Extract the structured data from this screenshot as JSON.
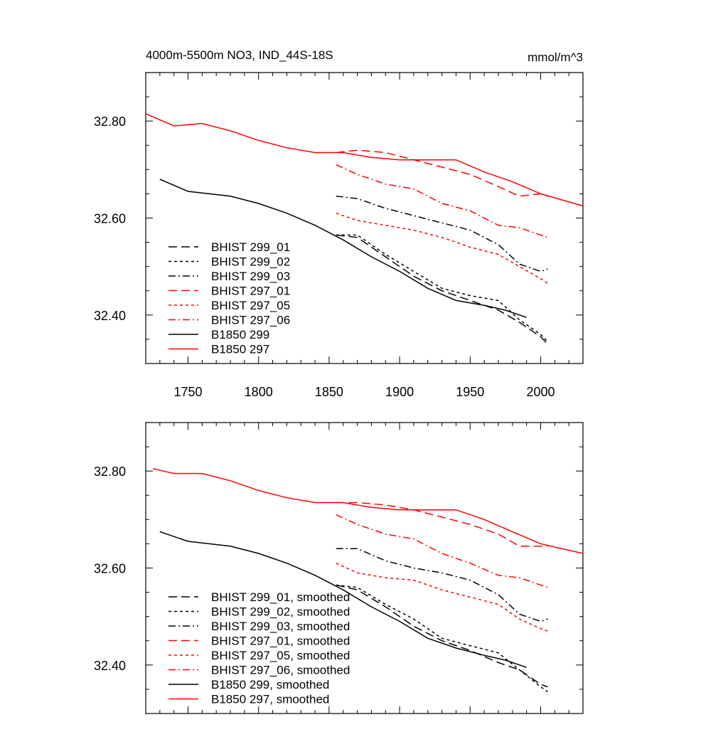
{
  "chart_data": [
    {
      "type": "line",
      "title": "4000m-5500m NO3, IND_44S-18S",
      "units_label": "mmol/m^3",
      "xlim": [
        1720,
        2030
      ],
      "ylim": [
        32.3,
        32.9
      ],
      "xticks": [
        1750,
        1800,
        1850,
        1900,
        1950,
        2000
      ],
      "xtick_labels": [
        "1750",
        "1800",
        "1850",
        "1900",
        "1950",
        "2000"
      ],
      "yticks": [
        32.4,
        32.6,
        32.8
      ],
      "ytick_labels": [
        "32.40",
        "32.60",
        "32.80"
      ],
      "legend_position": "bottom-left",
      "series": [
        {
          "name": "BHIST 299_01",
          "color": "#000000",
          "dash": "dashed",
          "x": [
            1855,
            1870,
            1890,
            1910,
            1930,
            1950,
            1970,
            1985,
            2000,
            2005
          ],
          "y": [
            32.565,
            32.56,
            32.52,
            32.48,
            32.45,
            32.43,
            32.41,
            32.385,
            32.355,
            32.34
          ]
        },
        {
          "name": "BHIST 299_02",
          "color": "#000000",
          "dash": "dotted",
          "x": [
            1855,
            1870,
            1890,
            1910,
            1930,
            1950,
            1970,
            1985,
            2000,
            2005
          ],
          "y": [
            32.565,
            32.565,
            32.525,
            32.49,
            32.455,
            32.44,
            32.43,
            32.39,
            32.36,
            32.345
          ]
        },
        {
          "name": "BHIST 299_03",
          "color": "#000000",
          "dash": "dashdot",
          "x": [
            1855,
            1870,
            1890,
            1910,
            1930,
            1950,
            1970,
            1985,
            2000,
            2005
          ],
          "y": [
            32.645,
            32.64,
            32.62,
            32.605,
            32.59,
            32.575,
            32.545,
            32.505,
            32.49,
            32.495
          ]
        },
        {
          "name": "BHIST 297_01",
          "color": "#ff0000",
          "dash": "dashed",
          "x": [
            1855,
            1870,
            1890,
            1910,
            1930,
            1950,
            1970,
            1985,
            2000,
            2005
          ],
          "y": [
            32.735,
            32.74,
            32.735,
            32.72,
            32.705,
            32.69,
            32.665,
            32.645,
            32.65,
            32.645
          ]
        },
        {
          "name": "BHIST 297_05",
          "color": "#ff0000",
          "dash": "dotted",
          "x": [
            1855,
            1870,
            1890,
            1910,
            1930,
            1950,
            1970,
            1985,
            2000,
            2005
          ],
          "y": [
            32.61,
            32.595,
            32.585,
            32.575,
            32.56,
            32.54,
            32.525,
            32.5,
            32.475,
            32.465
          ]
        },
        {
          "name": "BHIST 297_06",
          "color": "#ff0000",
          "dash": "dashdot",
          "x": [
            1855,
            1870,
            1890,
            1910,
            1930,
            1950,
            1970,
            1985,
            2000,
            2005
          ],
          "y": [
            32.71,
            32.69,
            32.67,
            32.66,
            32.63,
            32.615,
            32.585,
            32.58,
            32.565,
            32.56
          ]
        },
        {
          "name": "B1850 299",
          "color": "#000000",
          "dash": "solid",
          "x": [
            1730,
            1750,
            1780,
            1800,
            1820,
            1840,
            1860,
            1880,
            1900,
            1920,
            1940,
            1960,
            1975,
            1990
          ],
          "y": [
            32.68,
            32.655,
            32.645,
            32.63,
            32.61,
            32.585,
            32.555,
            32.52,
            32.49,
            32.455,
            32.43,
            32.42,
            32.41,
            32.395
          ]
        },
        {
          "name": "B1850 297",
          "color": "#ff0000",
          "dash": "solid",
          "x": [
            1720,
            1740,
            1760,
            1780,
            1800,
            1820,
            1840,
            1860,
            1880,
            1900,
            1920,
            1940,
            1960,
            1980,
            2000,
            2030
          ],
          "y": [
            32.815,
            32.79,
            32.795,
            32.78,
            32.76,
            32.745,
            32.735,
            32.735,
            32.725,
            32.72,
            32.72,
            32.72,
            32.695,
            32.675,
            32.65,
            32.625
          ]
        }
      ]
    },
    {
      "type": "line",
      "title": "",
      "xlim": [
        1720,
        2030
      ],
      "ylim": [
        32.3,
        32.9
      ],
      "xticks": [
        1750,
        1800,
        1850,
        1900,
        1950,
        2000
      ],
      "yticks": [
        32.4,
        32.6,
        32.8
      ],
      "ytick_labels": [
        "32.40",
        "32.60",
        "32.80"
      ],
      "legend_position": "bottom-left",
      "series": [
        {
          "name": "BHIST 299_01, smoothed",
          "color": "#000000",
          "dash": "dashed",
          "x": [
            1855,
            1870,
            1890,
            1910,
            1930,
            1950,
            1970,
            1985,
            2000,
            2005
          ],
          "y": [
            32.565,
            32.555,
            32.52,
            32.48,
            32.45,
            32.43,
            32.405,
            32.39,
            32.36,
            32.355
          ]
        },
        {
          "name": "BHIST 299_02, smoothed",
          "color": "#000000",
          "dash": "dotted",
          "x": [
            1855,
            1870,
            1890,
            1910,
            1930,
            1950,
            1970,
            1985,
            2000,
            2005
          ],
          "y": [
            32.565,
            32.56,
            32.525,
            32.495,
            32.455,
            32.44,
            32.425,
            32.39,
            32.355,
            32.345
          ]
        },
        {
          "name": "BHIST 299_03, smoothed",
          "color": "#000000",
          "dash": "dashdot",
          "x": [
            1855,
            1870,
            1890,
            1910,
            1930,
            1950,
            1970,
            1985,
            2000,
            2005
          ],
          "y": [
            32.64,
            32.64,
            32.615,
            32.6,
            32.59,
            32.575,
            32.545,
            32.505,
            32.49,
            32.495
          ]
        },
        {
          "name": "BHIST 297_01, smoothed",
          "color": "#ff0000",
          "dash": "dashed",
          "x": [
            1855,
            1870,
            1890,
            1910,
            1930,
            1950,
            1970,
            1985,
            2000,
            2005
          ],
          "y": [
            32.735,
            32.735,
            32.73,
            32.72,
            32.705,
            32.69,
            32.67,
            32.645,
            32.645,
            32.645
          ]
        },
        {
          "name": "BHIST 297_05, smoothed",
          "color": "#ff0000",
          "dash": "dotted",
          "x": [
            1855,
            1870,
            1890,
            1910,
            1930,
            1950,
            1970,
            1985,
            2000,
            2005
          ],
          "y": [
            32.61,
            32.59,
            32.58,
            32.575,
            32.555,
            32.54,
            32.525,
            32.495,
            32.475,
            32.47
          ]
        },
        {
          "name": "BHIST 297_06, smoothed",
          "color": "#ff0000",
          "dash": "dashdot",
          "x": [
            1855,
            1870,
            1890,
            1910,
            1930,
            1950,
            1970,
            1985,
            2000,
            2005
          ],
          "y": [
            32.71,
            32.69,
            32.67,
            32.66,
            32.63,
            32.61,
            32.585,
            32.58,
            32.565,
            32.56
          ]
        },
        {
          "name": "B1850 299, smoothed",
          "color": "#000000",
          "dash": "solid",
          "x": [
            1730,
            1750,
            1780,
            1800,
            1820,
            1840,
            1860,
            1880,
            1900,
            1920,
            1940,
            1960,
            1975,
            1990
          ],
          "y": [
            32.675,
            32.655,
            32.645,
            32.63,
            32.61,
            32.585,
            32.555,
            32.52,
            32.49,
            32.455,
            32.435,
            32.42,
            32.41,
            32.395
          ]
        },
        {
          "name": "B1850 297, smoothed",
          "color": "#ff0000",
          "dash": "solid",
          "x": [
            1725,
            1740,
            1760,
            1780,
            1800,
            1820,
            1840,
            1860,
            1880,
            1900,
            1920,
            1940,
            1960,
            1980,
            2000,
            2030
          ],
          "y": [
            32.805,
            32.795,
            32.795,
            32.78,
            32.76,
            32.745,
            32.735,
            32.735,
            32.725,
            32.72,
            32.72,
            32.72,
            32.7,
            32.675,
            32.65,
            32.63
          ]
        }
      ]
    }
  ]
}
